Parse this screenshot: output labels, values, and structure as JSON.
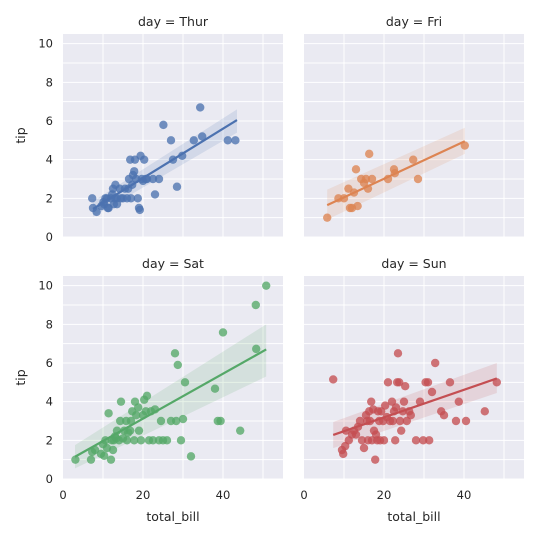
{
  "chart_data": {
    "type": "scatter",
    "x_variable": "total_bill",
    "y_variable": "tip",
    "facet_variable": "day",
    "xlabel": "total_bill",
    "ylabel": "tip",
    "xlim": [
      0,
      55
    ],
    "ylim": [
      0,
      10.5
    ],
    "x_ticks": [
      0,
      20,
      40
    ],
    "y_ticks": [
      0,
      2,
      4,
      6,
      8,
      10
    ],
    "grid": true,
    "regression": true,
    "panels": [
      {
        "title": "day = Thur",
        "color": "#4c72b0",
        "fit": {
          "x0": 7.5,
          "y0": 1.45,
          "x1": 43.5,
          "y1": 6.05
        },
        "band": {
          "upper": [
            1.85,
            6.6
          ],
          "lower": [
            1.05,
            5.4
          ]
        },
        "points": [
          [
            7.3,
            2.0
          ],
          [
            7.5,
            1.5
          ],
          [
            8.4,
            1.3
          ],
          [
            9.6,
            1.6
          ],
          [
            10.1,
            1.8
          ],
          [
            10.3,
            1.7
          ],
          [
            10.6,
            2.0
          ],
          [
            11,
            2.0
          ],
          [
            11.2,
            1.5
          ],
          [
            11.4,
            1.5
          ],
          [
            12,
            2.0
          ],
          [
            12.3,
            2.2
          ],
          [
            12.5,
            2.5
          ],
          [
            12.7,
            1.7
          ],
          [
            13,
            2.0
          ],
          [
            13.1,
            2.7
          ],
          [
            13.4,
            2.0
          ],
          [
            13.5,
            1.7
          ],
          [
            14.2,
            2.5
          ],
          [
            14.5,
            2.0
          ],
          [
            15,
            2.0
          ],
          [
            15.5,
            2.5
          ],
          [
            16,
            2.0
          ],
          [
            16.3,
            2.5
          ],
          [
            16.5,
            3.0
          ],
          [
            16.8,
            4.0
          ],
          [
            17,
            2.0
          ],
          [
            17.3,
            2.7
          ],
          [
            17.5,
            3.2
          ],
          [
            17.8,
            3.4
          ],
          [
            18,
            4.0
          ],
          [
            18.3,
            3.0
          ],
          [
            18.7,
            2.0
          ],
          [
            19,
            1.5
          ],
          [
            19.2,
            1.4
          ],
          [
            19.4,
            4.2
          ],
          [
            19.7,
            3.0
          ],
          [
            20,
            2.9
          ],
          [
            20.3,
            4.0
          ],
          [
            20.7,
            3.0
          ],
          [
            21,
            3.0
          ],
          [
            22.5,
            3.0
          ],
          [
            23,
            2.2
          ],
          [
            24,
            3.0
          ],
          [
            25.1,
            5.8
          ],
          [
            27,
            5.0
          ],
          [
            27.5,
            4.0
          ],
          [
            28.5,
            2.6
          ],
          [
            29.8,
            4.2
          ],
          [
            32.7,
            5.0
          ],
          [
            34.3,
            6.7
          ],
          [
            34.8,
            5.2
          ],
          [
            41.2,
            5.0
          ],
          [
            43.1,
            5.0
          ]
        ]
      },
      {
        "title": "day = Fri",
        "color": "#dd8452",
        "fit": {
          "x0": 5.8,
          "y0": 1.65,
          "x1": 40.2,
          "y1": 4.95
        },
        "band": {
          "upper": [
            2.45,
            5.65
          ],
          "lower": [
            0.9,
            4.3
          ]
        },
        "points": [
          [
            5.8,
            1.0
          ],
          [
            8.6,
            2.0
          ],
          [
            10,
            2.0
          ],
          [
            11.1,
            2.5
          ],
          [
            11.5,
            1.5
          ],
          [
            12,
            1.5
          ],
          [
            12.5,
            2.3
          ],
          [
            13,
            3.5
          ],
          [
            13.4,
            1.6
          ],
          [
            14.3,
            3.0
          ],
          [
            15,
            2.8
          ],
          [
            15.5,
            3.0
          ],
          [
            16,
            2.5
          ],
          [
            16.3,
            4.3
          ],
          [
            17,
            3.0
          ],
          [
            21,
            3.0
          ],
          [
            22.5,
            3.5
          ],
          [
            22.7,
            3.3
          ],
          [
            27.3,
            4.0
          ],
          [
            28.5,
            3.0
          ],
          [
            40.2,
            4.73
          ]
        ]
      },
      {
        "title": "day = Sat",
        "color": "#55a868",
        "fit": {
          "x0": 3.0,
          "y0": 1.15,
          "x1": 50.8,
          "y1": 6.7
        },
        "band": {
          "upper": [
            1.75,
            8.0
          ],
          "lower": [
            0.55,
            5.3
          ]
        },
        "points": [
          [
            3.1,
            1.0
          ],
          [
            7,
            1.0
          ],
          [
            7.3,
            1.4
          ],
          [
            8,
            1.5
          ],
          [
            9.5,
            1.3
          ],
          [
            10,
            1.8
          ],
          [
            10.3,
            1.2
          ],
          [
            10.6,
            2.0
          ],
          [
            11,
            1.6
          ],
          [
            11.4,
            3.4
          ],
          [
            12,
            1.0
          ],
          [
            12.2,
            2.0
          ],
          [
            12.5,
            1.5
          ],
          [
            12.7,
            2.0
          ],
          [
            13,
            2.2
          ],
          [
            13.3,
            2.1
          ],
          [
            13.5,
            2.5
          ],
          [
            14,
            2.0
          ],
          [
            14.3,
            3.0
          ],
          [
            14.5,
            4.0
          ],
          [
            15,
            2.1
          ],
          [
            15.3,
            2.5
          ],
          [
            15.8,
            3.0
          ],
          [
            16,
            2.0
          ],
          [
            16.3,
            2.4
          ],
          [
            16.8,
            2.5
          ],
          [
            17,
            3.0
          ],
          [
            17.3,
            3.5
          ],
          [
            17.8,
            2.0
          ],
          [
            18,
            4.0
          ],
          [
            18.3,
            3.3
          ],
          [
            18.8,
            3.7
          ],
          [
            19,
            2.5
          ],
          [
            19.5,
            2.0
          ],
          [
            20,
            3.3
          ],
          [
            20.3,
            4.1
          ],
          [
            20.7,
            3.5
          ],
          [
            21,
            4.3
          ],
          [
            21.5,
            2.0
          ],
          [
            22,
            3.5
          ],
          [
            22.5,
            2.0
          ],
          [
            23,
            3.6
          ],
          [
            24,
            2.0
          ],
          [
            24.5,
            3.0
          ],
          [
            25,
            2.0
          ],
          [
            26,
            2.0
          ],
          [
            27,
            3.0
          ],
          [
            28,
            6.5
          ],
          [
            28.3,
            3.0
          ],
          [
            28.7,
            5.9
          ],
          [
            29.5,
            2.0
          ],
          [
            30,
            3.1
          ],
          [
            30.5,
            5.0
          ],
          [
            32,
            1.17
          ],
          [
            38,
            4.67
          ],
          [
            38.7,
            3.0
          ],
          [
            39.4,
            3.0
          ],
          [
            40,
            7.58
          ],
          [
            44.3,
            2.5
          ],
          [
            48.2,
            9.0
          ],
          [
            48.3,
            6.73
          ],
          [
            50.8,
            10.0
          ]
        ]
      },
      {
        "title": "day = Sun",
        "color": "#c44e52",
        "fit": {
          "x0": 7.3,
          "y0": 2.28,
          "x1": 48.2,
          "y1": 5.2
        },
        "band": {
          "upper": [
            2.95,
            6.0
          ],
          "lower": [
            1.6,
            4.45
          ]
        },
        "points": [
          [
            7.3,
            5.15
          ],
          [
            9.5,
            1.5
          ],
          [
            9.8,
            1.3
          ],
          [
            10.3,
            1.7
          ],
          [
            10.5,
            2.5
          ],
          [
            11.2,
            2.0
          ],
          [
            12,
            2.3
          ],
          [
            12.5,
            2.5
          ],
          [
            13,
            2.3
          ],
          [
            13.5,
            2.7
          ],
          [
            14,
            3.0
          ],
          [
            14.5,
            2.0
          ],
          [
            15,
            1.6
          ],
          [
            15.5,
            3.3
          ],
          [
            15.8,
            3.0
          ],
          [
            16,
            2.0
          ],
          [
            16.3,
            3.5
          ],
          [
            16.5,
            3.0
          ],
          [
            16.8,
            4.0
          ],
          [
            17,
            2.0
          ],
          [
            17.3,
            3.6
          ],
          [
            17.5,
            2.5
          ],
          [
            17.8,
            1.0
          ],
          [
            18,
            2.3
          ],
          [
            18.3,
            2.0
          ],
          [
            18.5,
            3.5
          ],
          [
            18.8,
            3.0
          ],
          [
            19,
            2.0
          ],
          [
            19.3,
            3.5
          ],
          [
            19.8,
            3.0
          ],
          [
            20,
            2.0
          ],
          [
            20.3,
            3.8
          ],
          [
            20.7,
            3.2
          ],
          [
            21,
            5.0
          ],
          [
            21.5,
            3.0
          ],
          [
            22,
            4.0
          ],
          [
            22.2,
            3.0
          ],
          [
            22.5,
            3.5
          ],
          [
            22.8,
            2.0
          ],
          [
            23,
            3.7
          ],
          [
            23.3,
            5.0
          ],
          [
            23.5,
            6.5
          ],
          [
            23.8,
            5.0
          ],
          [
            24,
            3.0
          ],
          [
            24.3,
            2.5
          ],
          [
            24.7,
            3.5
          ],
          [
            25,
            4.0
          ],
          [
            25.3,
            4.8
          ],
          [
            25.7,
            3.0
          ],
          [
            26.3,
            3.5
          ],
          [
            26.7,
            3.3
          ],
          [
            28,
            2.0
          ],
          [
            29,
            4.0
          ],
          [
            29.8,
            2.0
          ],
          [
            30.4,
            5.0
          ],
          [
            31,
            5.0
          ],
          [
            31.3,
            2.0
          ],
          [
            32,
            4.5
          ],
          [
            32.8,
            6.0
          ],
          [
            34.3,
            3.5
          ],
          [
            35,
            3.3
          ],
          [
            36.5,
            5.0
          ],
          [
            38,
            3.0
          ],
          [
            38.7,
            4.0
          ],
          [
            40.5,
            3.0
          ],
          [
            45.2,
            3.5
          ],
          [
            48.2,
            5.0
          ]
        ]
      }
    ]
  }
}
